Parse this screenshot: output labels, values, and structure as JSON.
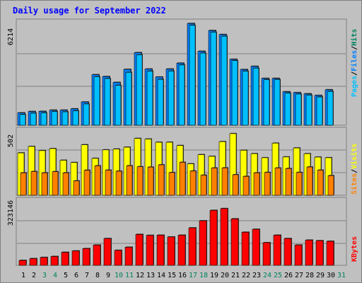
{
  "title": "Daily usage for September 2022",
  "colors": {
    "pages": "#00c0ff",
    "files": "#0080ff",
    "hits": "#00805c",
    "visits": "#ffff00",
    "sites": "#ff8000",
    "kbytes": "#ff0000",
    "weekend_day": "#00805c",
    "weekday": "#000000",
    "background": "#c0c0c0"
  },
  "chart_data": [
    {
      "type": "bar",
      "title": "Daily usage for September 2022",
      "ymax_label": "6214",
      "ylim": [
        0,
        6214
      ],
      "legend": [
        {
          "name": "Pages",
          "color": "#00c0ff"
        },
        {
          "name": "Files",
          "color": "#0080ff"
        },
        {
          "name": "Hits",
          "color": "#00805c"
        }
      ],
      "x": [
        "1",
        "2",
        "3",
        "4",
        "5",
        "6",
        "7",
        "8",
        "9",
        "10",
        "11",
        "12",
        "13",
        "14",
        "15",
        "16",
        "17",
        "18",
        "19",
        "20",
        "21",
        "22",
        "23",
        "24",
        "25",
        "26",
        "27",
        "28",
        "29",
        "30",
        "31"
      ],
      "weekend_days": [
        "3",
        "4",
        "10",
        "11",
        "17",
        "18",
        "24",
        "25",
        "31"
      ],
      "series": [
        {
          "name": "Hits",
          "values": [
            740,
            820,
            830,
            900,
            900,
            980,
            1390,
            3020,
            2910,
            2560,
            3340,
            4340,
            3360,
            2880,
            3360,
            3710,
            6080,
            4420,
            5660,
            5420,
            3940,
            3330,
            3520,
            2800,
            2800,
            2000,
            1950,
            1880,
            1780,
            2120,
            0
          ]
        },
        {
          "name": "Files",
          "values": [
            640,
            720,
            740,
            820,
            800,
            860,
            1270,
            2900,
            2790,
            2380,
            3160,
            4210,
            3230,
            2740,
            3240,
            3600,
            5970,
            4310,
            5560,
            5320,
            3860,
            3230,
            3410,
            2720,
            2730,
            1920,
            1860,
            1800,
            1690,
            2020,
            0
          ]
        }
      ]
    },
    {
      "type": "bar",
      "ymax_label": "502",
      "ylim": [
        0,
        502
      ],
      "legend": [
        {
          "name": "Sites",
          "color": "#ff8000"
        },
        {
          "name": "Visits",
          "color": "#ffff00"
        }
      ],
      "x": [
        "1",
        "2",
        "3",
        "4",
        "5",
        "6",
        "7",
        "8",
        "9",
        "10",
        "11",
        "12",
        "13",
        "14",
        "15",
        "16",
        "17",
        "18",
        "19",
        "20",
        "21",
        "22",
        "23",
        "24",
        "25",
        "26",
        "27",
        "28",
        "29",
        "30",
        "31"
      ],
      "series": [
        {
          "name": "Visits",
          "values": [
            334,
            385,
            352,
            368,
            276,
            258,
            398,
            291,
            358,
            364,
            379,
            448,
            443,
            418,
            418,
            392,
            248,
            320,
            307,
            423,
            486,
            355,
            328,
            296,
            411,
            302,
            373,
            328,
            301,
            296,
            0
          ]
        },
        {
          "name": "Sites",
          "values": [
            177,
            187,
            177,
            186,
            177,
            113,
            197,
            232,
            198,
            190,
            233,
            225,
            222,
            240,
            179,
            260,
            191,
            158,
            215,
            216,
            162,
            149,
            177,
            180,
            215,
            211,
            180,
            223,
            198,
            155,
            212
          ]
        }
      ]
    },
    {
      "type": "bar",
      "ymax_label": "323146",
      "ylim": [
        0,
        323146
      ],
      "legend": [
        {
          "name": "KBytes",
          "color": "#ff0000"
        }
      ],
      "x": [
        "1",
        "2",
        "3",
        "4",
        "5",
        "6",
        "7",
        "8",
        "9",
        "10",
        "11",
        "12",
        "13",
        "14",
        "15",
        "16",
        "17",
        "18",
        "19",
        "20",
        "21",
        "22",
        "23",
        "24",
        "25",
        "26",
        "27",
        "28",
        "29",
        "30",
        "31"
      ],
      "series": [
        {
          "name": "KBytes",
          "values": [
            25000,
            34000,
            40000,
            45000,
            66000,
            73000,
            85000,
            103000,
            136000,
            76000,
            92000,
            157000,
            152000,
            153000,
            144000,
            153000,
            190000,
            226000,
            279000,
            288000,
            236000,
            168000,
            183000,
            115000,
            153000,
            136000,
            103000,
            128000,
            125000,
            122000,
            0
          ]
        }
      ]
    }
  ]
}
